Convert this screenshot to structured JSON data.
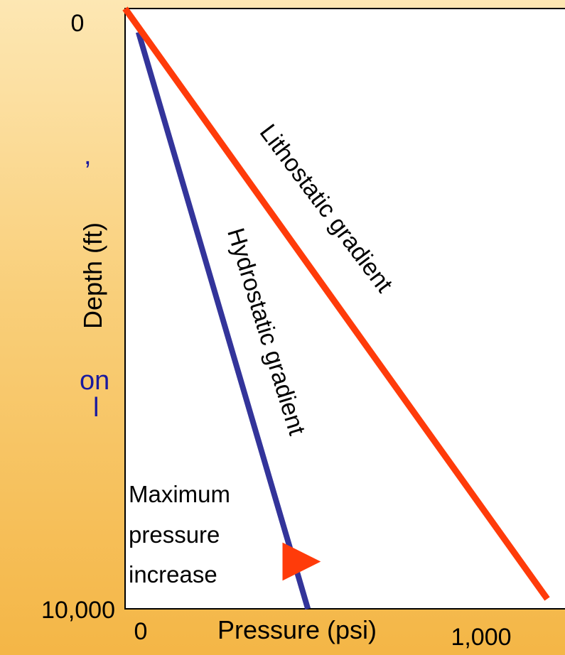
{
  "background_fragments": [
    ",",
    "on",
    "l"
  ],
  "chart_data": {
    "type": "line",
    "title": "",
    "xlabel": "Pressure (psi)",
    "ylabel": "Depth (ft)",
    "x_ticks": [
      "0",
      "1,000"
    ],
    "y_ticks": [
      "0",
      "10,000"
    ],
    "xlim": [
      0,
      1000
    ],
    "ylim": [
      10000,
      0
    ],
    "y_inverted": true,
    "grid": false,
    "series": [
      {
        "name": "Lithostatic gradient",
        "color": "#ff3b0a",
        "x": [
          0,
          1000
        ],
        "y": [
          0,
          10000
        ]
      },
      {
        "name": "Hydrostatic gradient",
        "color": "#33349a",
        "x": [
          35,
          433
        ],
        "y": [
          400,
          10000
        ]
      }
    ],
    "annotations": [
      {
        "text": "Maximum pressure increase",
        "lines": [
          "Maximum",
          "pressure",
          "increase"
        ]
      }
    ],
    "arrow": {
      "from_x": 433,
      "to_x": 780,
      "y": 9200,
      "color": "#ff3b0a"
    }
  }
}
